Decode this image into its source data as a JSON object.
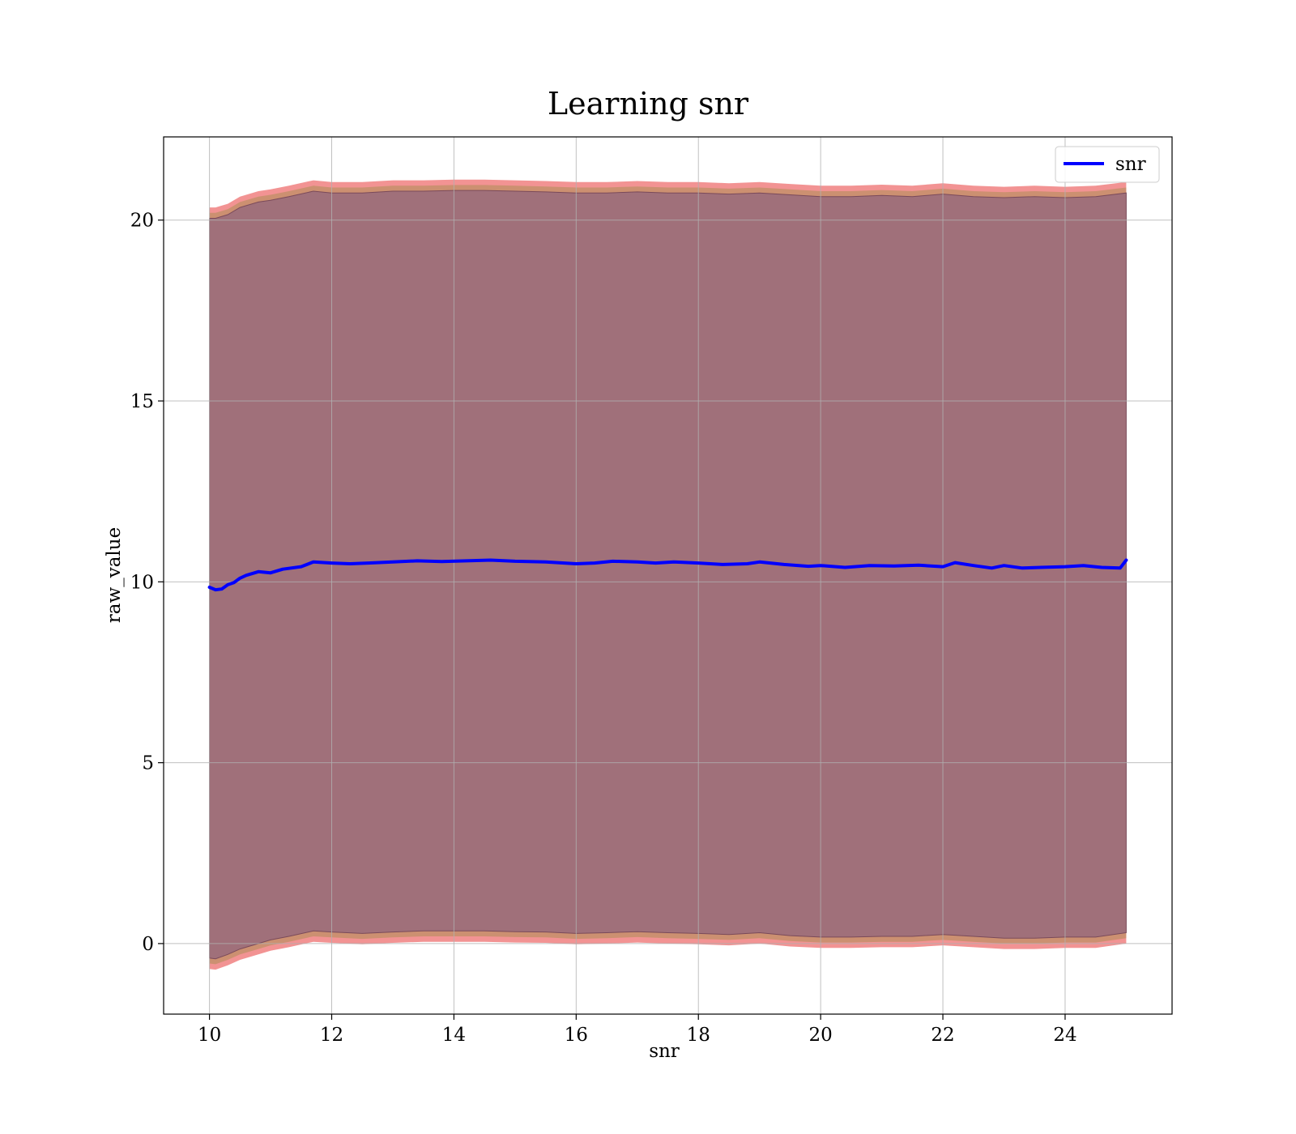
{
  "chart_data": {
    "type": "line",
    "title": "Learning snr",
    "xlabel": "snr",
    "ylabel": "raw_value",
    "xlim": [
      9.25,
      25.75
    ],
    "ylim": [
      -1.95,
      22.3
    ],
    "xticks": [
      10,
      12,
      14,
      16,
      18,
      20,
      22,
      24
    ],
    "yticks": [
      0,
      5,
      10,
      15,
      20
    ],
    "grid": true,
    "legend": {
      "placement": "top-right",
      "entries": [
        "snr"
      ]
    },
    "colors": {
      "line": "#0000ff",
      "band_outer": "#f08080",
      "band_mid": "#c8906e",
      "band_inner": "#a0707a",
      "band_inner_edge": "#7a4a5a"
    },
    "series": [
      {
        "name": "snr",
        "x": [
          10.0,
          10.1,
          10.2,
          10.3,
          10.4,
          10.5,
          10.6,
          10.8,
          11.0,
          11.2,
          11.5,
          11.7,
          12.0,
          12.3,
          12.6,
          13.0,
          13.4,
          13.8,
          14.2,
          14.6,
          15.0,
          15.5,
          16.0,
          16.3,
          16.6,
          17.0,
          17.3,
          17.6,
          18.0,
          18.4,
          18.8,
          19.0,
          19.4,
          19.8,
          20.0,
          20.4,
          20.8,
          21.2,
          21.6,
          22.0,
          22.2,
          22.5,
          22.8,
          23.0,
          23.3,
          23.6,
          24.0,
          24.3,
          24.6,
          24.9,
          25.0
        ],
        "y": [
          9.85,
          9.78,
          9.8,
          9.92,
          9.98,
          10.1,
          10.18,
          10.28,
          10.25,
          10.35,
          10.42,
          10.55,
          10.52,
          10.5,
          10.52,
          10.55,
          10.58,
          10.56,
          10.58,
          10.6,
          10.57,
          10.55,
          10.5,
          10.52,
          10.57,
          10.55,
          10.52,
          10.55,
          10.52,
          10.48,
          10.5,
          10.55,
          10.48,
          10.43,
          10.45,
          10.4,
          10.45,
          10.44,
          10.46,
          10.42,
          10.53,
          10.45,
          10.38,
          10.45,
          10.38,
          10.4,
          10.42,
          10.45,
          10.4,
          10.38,
          10.6
        ]
      }
    ],
    "bands": [
      {
        "x": [
          10.0,
          10.1,
          10.3,
          10.5,
          10.8,
          11.0,
          11.3,
          11.7,
          12.0,
          12.5,
          13.0,
          13.5,
          14.0,
          14.5,
          15.0,
          15.5,
          16.0,
          16.5,
          17.0,
          17.5,
          18.0,
          18.5,
          19.0,
          19.5,
          20.0,
          20.5,
          21.0,
          21.5,
          22.0,
          22.5,
          23.0,
          23.5,
          24.0,
          24.5,
          25.0
        ],
        "upper": [
          20.35,
          20.35,
          20.45,
          20.65,
          20.8,
          20.85,
          20.95,
          21.1,
          21.05,
          21.05,
          21.1,
          21.1,
          21.12,
          21.12,
          21.1,
          21.08,
          21.05,
          21.05,
          21.08,
          21.05,
          21.05,
          21.02,
          21.05,
          21.0,
          20.95,
          20.95,
          20.98,
          20.95,
          21.02,
          20.95,
          20.92,
          20.95,
          20.92,
          20.95,
          21.05
        ],
        "lower": [
          -0.7,
          -0.72,
          -0.6,
          -0.45,
          -0.3,
          -0.2,
          -0.1,
          0.05,
          0.02,
          -0.02,
          0.02,
          0.05,
          0.05,
          0.05,
          0.03,
          0.02,
          -0.02,
          0.0,
          0.03,
          0.0,
          -0.02,
          -0.05,
          0.0,
          -0.08,
          -0.12,
          -0.12,
          -0.1,
          -0.1,
          -0.05,
          -0.1,
          -0.15,
          -0.15,
          -0.12,
          -0.12,
          0.0
        ]
      },
      {
        "x": [
          10.0,
          10.1,
          10.3,
          10.5,
          10.8,
          11.0,
          11.3,
          11.7,
          12.0,
          12.5,
          13.0,
          13.5,
          14.0,
          14.5,
          15.0,
          15.5,
          16.0,
          16.5,
          17.0,
          17.5,
          18.0,
          18.5,
          19.0,
          19.5,
          20.0,
          20.5,
          21.0,
          21.5,
          22.0,
          22.5,
          23.0,
          23.5,
          24.0,
          24.5,
          25.0
        ],
        "upper": [
          20.2,
          20.2,
          20.3,
          20.5,
          20.65,
          20.7,
          20.8,
          20.95,
          20.9,
          20.9,
          20.95,
          20.95,
          20.97,
          20.97,
          20.95,
          20.93,
          20.9,
          20.9,
          20.93,
          20.9,
          20.9,
          20.87,
          20.9,
          20.85,
          20.8,
          20.8,
          20.83,
          20.8,
          20.87,
          20.8,
          20.77,
          20.8,
          20.77,
          20.8,
          20.9
        ],
        "lower": [
          -0.55,
          -0.57,
          -0.45,
          -0.3,
          -0.15,
          -0.05,
          0.05,
          0.2,
          0.17,
          0.13,
          0.17,
          0.2,
          0.2,
          0.2,
          0.18,
          0.17,
          0.13,
          0.15,
          0.18,
          0.15,
          0.13,
          0.1,
          0.15,
          0.07,
          0.03,
          0.03,
          0.05,
          0.05,
          0.1,
          0.05,
          0.0,
          0.0,
          0.03,
          0.03,
          0.15
        ]
      },
      {
        "x": [
          10.0,
          10.1,
          10.3,
          10.5,
          10.8,
          11.0,
          11.3,
          11.7,
          12.0,
          12.5,
          13.0,
          13.5,
          14.0,
          14.5,
          15.0,
          15.5,
          16.0,
          16.5,
          17.0,
          17.5,
          18.0,
          18.5,
          19.0,
          19.5,
          20.0,
          20.5,
          21.0,
          21.5,
          22.0,
          22.5,
          23.0,
          23.5,
          24.0,
          24.5,
          25.0
        ],
        "upper": [
          20.05,
          20.05,
          20.15,
          20.35,
          20.5,
          20.55,
          20.65,
          20.8,
          20.75,
          20.75,
          20.8,
          20.8,
          20.82,
          20.82,
          20.8,
          20.78,
          20.75,
          20.75,
          20.78,
          20.75,
          20.75,
          20.72,
          20.75,
          20.7,
          20.65,
          20.65,
          20.68,
          20.65,
          20.72,
          20.65,
          20.62,
          20.65,
          20.62,
          20.65,
          20.75
        ],
        "lower": [
          -0.4,
          -0.42,
          -0.3,
          -0.15,
          0.0,
          0.1,
          0.2,
          0.35,
          0.32,
          0.28,
          0.32,
          0.35,
          0.35,
          0.35,
          0.33,
          0.32,
          0.28,
          0.3,
          0.33,
          0.3,
          0.28,
          0.25,
          0.3,
          0.22,
          0.18,
          0.18,
          0.2,
          0.2,
          0.25,
          0.2,
          0.15,
          0.15,
          0.18,
          0.18,
          0.3
        ]
      }
    ]
  }
}
